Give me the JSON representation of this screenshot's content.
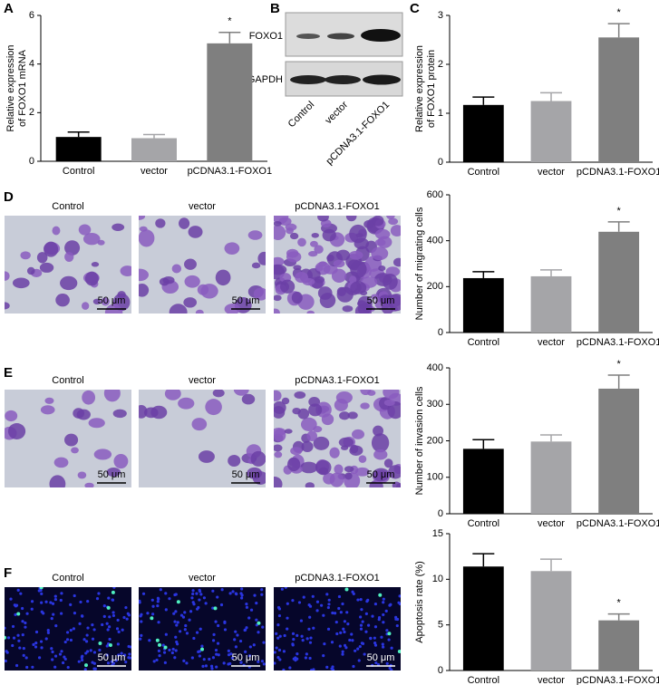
{
  "panel_labels": [
    "A",
    "B",
    "C",
    "D",
    "E",
    "F"
  ],
  "blot": {
    "bands": [
      "FOXO1",
      "GAPDH"
    ],
    "lanes": [
      "Control",
      "vector",
      "pCDNA3.1-FOXO1"
    ]
  },
  "micrographs": {
    "labels": [
      "Control",
      "vector",
      "pCDNA3.1-FOXO1"
    ],
    "scale_bar": "50 μm"
  },
  "chart_data": [
    {
      "type": "bar",
      "ylabel": [
        "Relative expression",
        "of FOXO1 mRNA"
      ],
      "categories": [
        "Control",
        "vector",
        "pCDNA3.1-FOXO1"
      ],
      "values": [
        1.0,
        0.95,
        4.85
      ],
      "errors": [
        0.2,
        0.15,
        0.45
      ],
      "colors": [
        "#000000",
        "#a5a5a8",
        "#7f7f7f"
      ],
      "ylim": [
        0,
        6
      ],
      "yticks": [
        0,
        2,
        4,
        6
      ],
      "annotations": [
        {
          "text": "*",
          "category": "pCDNA3.1-FOXO1"
        }
      ]
    },
    {
      "type": "bar",
      "ylabel": [
        "Relative expression",
        "of FOXO1 protein"
      ],
      "categories": [
        "Control",
        "vector",
        "pCDNA3.1-FOXO1"
      ],
      "values": [
        1.17,
        1.25,
        2.55
      ],
      "errors": [
        0.16,
        0.17,
        0.28
      ],
      "colors": [
        "#000000",
        "#a5a5a8",
        "#7f7f7f"
      ],
      "ylim": [
        0,
        3
      ],
      "yticks": [
        0,
        1,
        2,
        3
      ],
      "annotations": [
        {
          "text": "*",
          "category": "pCDNA3.1-FOXO1"
        }
      ]
    },
    {
      "type": "bar",
      "ylabel": [
        "Number of migrating cells"
      ],
      "categories": [
        "Control",
        "vector",
        "pCDNA3.1-FOXO1"
      ],
      "values": [
        237,
        245,
        439
      ],
      "errors": [
        28,
        28,
        43
      ],
      "colors": [
        "#000000",
        "#a5a5a8",
        "#7f7f7f"
      ],
      "ylim": [
        0,
        600
      ],
      "yticks": [
        0,
        200,
        400,
        600
      ],
      "annotations": [
        {
          "text": "*",
          "category": "pCDNA3.1-FOXO1"
        }
      ]
    },
    {
      "type": "bar",
      "ylabel": [
        "Number of invasion cells"
      ],
      "categories": [
        "Control",
        "vector",
        "pCDNA3.1-FOXO1"
      ],
      "values": [
        178,
        198,
        343
      ],
      "errors": [
        25,
        18,
        37
      ],
      "colors": [
        "#000000",
        "#a5a5a8",
        "#7f7f7f"
      ],
      "ylim": [
        0,
        400
      ],
      "yticks": [
        0,
        100,
        200,
        300,
        400
      ],
      "annotations": [
        {
          "text": "*",
          "category": "pCDNA3.1-FOXO1"
        }
      ]
    },
    {
      "type": "bar",
      "ylabel": [
        "Apoptosis rate (%)"
      ],
      "categories": [
        "Control",
        "vector",
        "pCDNA3.1-FOXO1"
      ],
      "values": [
        11.4,
        10.9,
        5.5
      ],
      "errors": [
        1.4,
        1.3,
        0.7
      ],
      "colors": [
        "#000000",
        "#a5a5a8",
        "#7f7f7f"
      ],
      "ylim": [
        0,
        15
      ],
      "yticks": [
        0,
        5,
        10,
        15
      ],
      "annotations": [
        {
          "text": "*",
          "category": "pCDNA3.1-FOXO1"
        }
      ]
    }
  ]
}
